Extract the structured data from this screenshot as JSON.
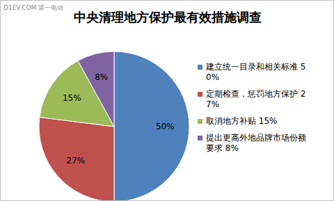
{
  "chart_data": {
    "type": "pie",
    "title": "中央清理地方保护最有效措施调查",
    "annotations": [
      "D1EV.COM 第一电动"
    ],
    "categories": [
      "建立统一目录和相关标准 50%",
      "定期检查，惩罚地方保护 27%",
      "取消地方补贴 15%",
      "提出更高外地品牌市场份额要求 8%"
    ],
    "values": [
      50,
      27,
      15,
      8
    ],
    "value_labels": [
      "50%",
      "27%",
      "15%",
      "8%"
    ],
    "colors": [
      "#4f81bd",
      "#c0504d",
      "#9bbb59",
      "#8064a2"
    ],
    "data_labels": true,
    "legend": "right"
  }
}
